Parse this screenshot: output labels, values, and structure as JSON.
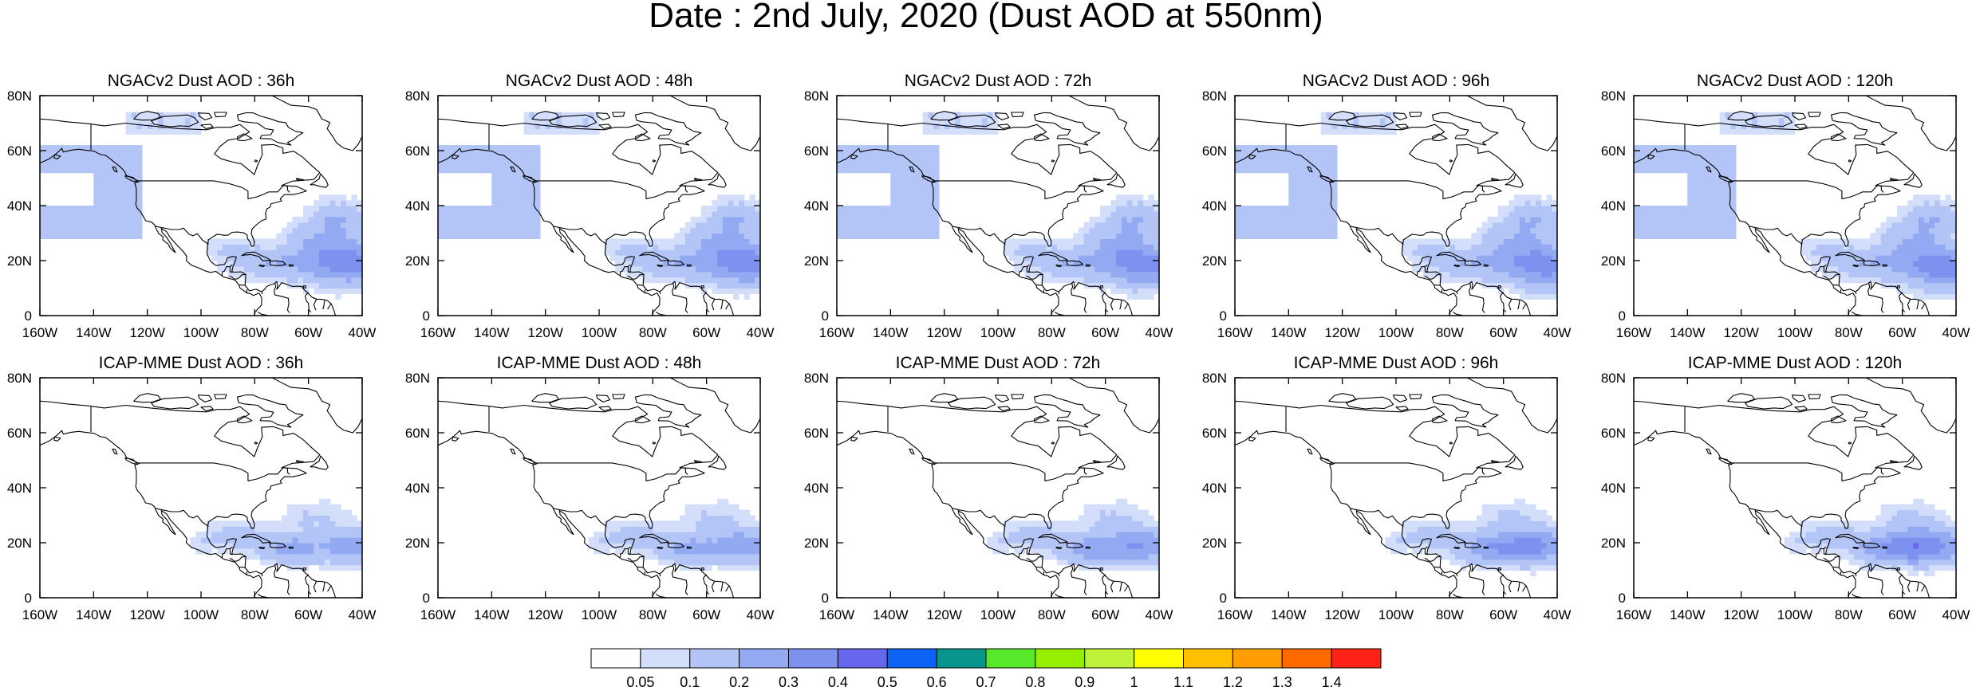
{
  "figure": {
    "title": "Date : 2nd July, 2020 (Dust AOD at 550nm)"
  },
  "axes": {
    "x_ticks": [
      "160W",
      "140W",
      "120W",
      "100W",
      "80W",
      "60W",
      "40W"
    ],
    "y_ticks": [
      "80N",
      "60N",
      "40N",
      "20N",
      "0"
    ],
    "lon_range": [
      -160,
      -40
    ],
    "lat_range": [
      0,
      80
    ]
  },
  "panels": [
    {
      "title": "NGACv2 Dust AOD : 36h",
      "model": "ngac",
      "lead": 36
    },
    {
      "title": "NGACv2 Dust AOD : 48h",
      "model": "ngac",
      "lead": 48
    },
    {
      "title": "NGACv2 Dust AOD : 72h",
      "model": "ngac",
      "lead": 72
    },
    {
      "title": "NGACv2 Dust AOD : 96h",
      "model": "ngac",
      "lead": 96
    },
    {
      "title": "NGACv2 Dust AOD : 120h",
      "model": "ngac",
      "lead": 120
    },
    {
      "title": "ICAP-MME Dust AOD : 36h",
      "model": "icap",
      "lead": 36
    },
    {
      "title": "ICAP-MME Dust AOD : 48h",
      "model": "icap",
      "lead": 48
    },
    {
      "title": "ICAP-MME Dust AOD : 72h",
      "model": "icap",
      "lead": 72
    },
    {
      "title": "ICAP-MME Dust AOD : 96h",
      "model": "icap",
      "lead": 96
    },
    {
      "title": "ICAP-MME Dust AOD : 120h",
      "model": "icap",
      "lead": 120
    }
  ],
  "colorbar": {
    "labels": [
      "0.05",
      "0.1",
      "0.2",
      "0.3",
      "0.4",
      "0.5",
      "0.6",
      "0.7",
      "0.8",
      "0.9",
      "1",
      "1.1",
      "1.2",
      "1.3",
      "1.4"
    ],
    "colors": [
      "#ffffff",
      "#d3defb",
      "#b3c4f6",
      "#93aaf3",
      "#7d91ef",
      "#6766ef",
      "#0d63f6",
      "#07958c",
      "#58e82b",
      "#97ef00",
      "#c1f23a",
      "#ffff00",
      "#ffc000",
      "#ff9e00",
      "#ff6a00",
      "#ff2317"
    ]
  }
}
